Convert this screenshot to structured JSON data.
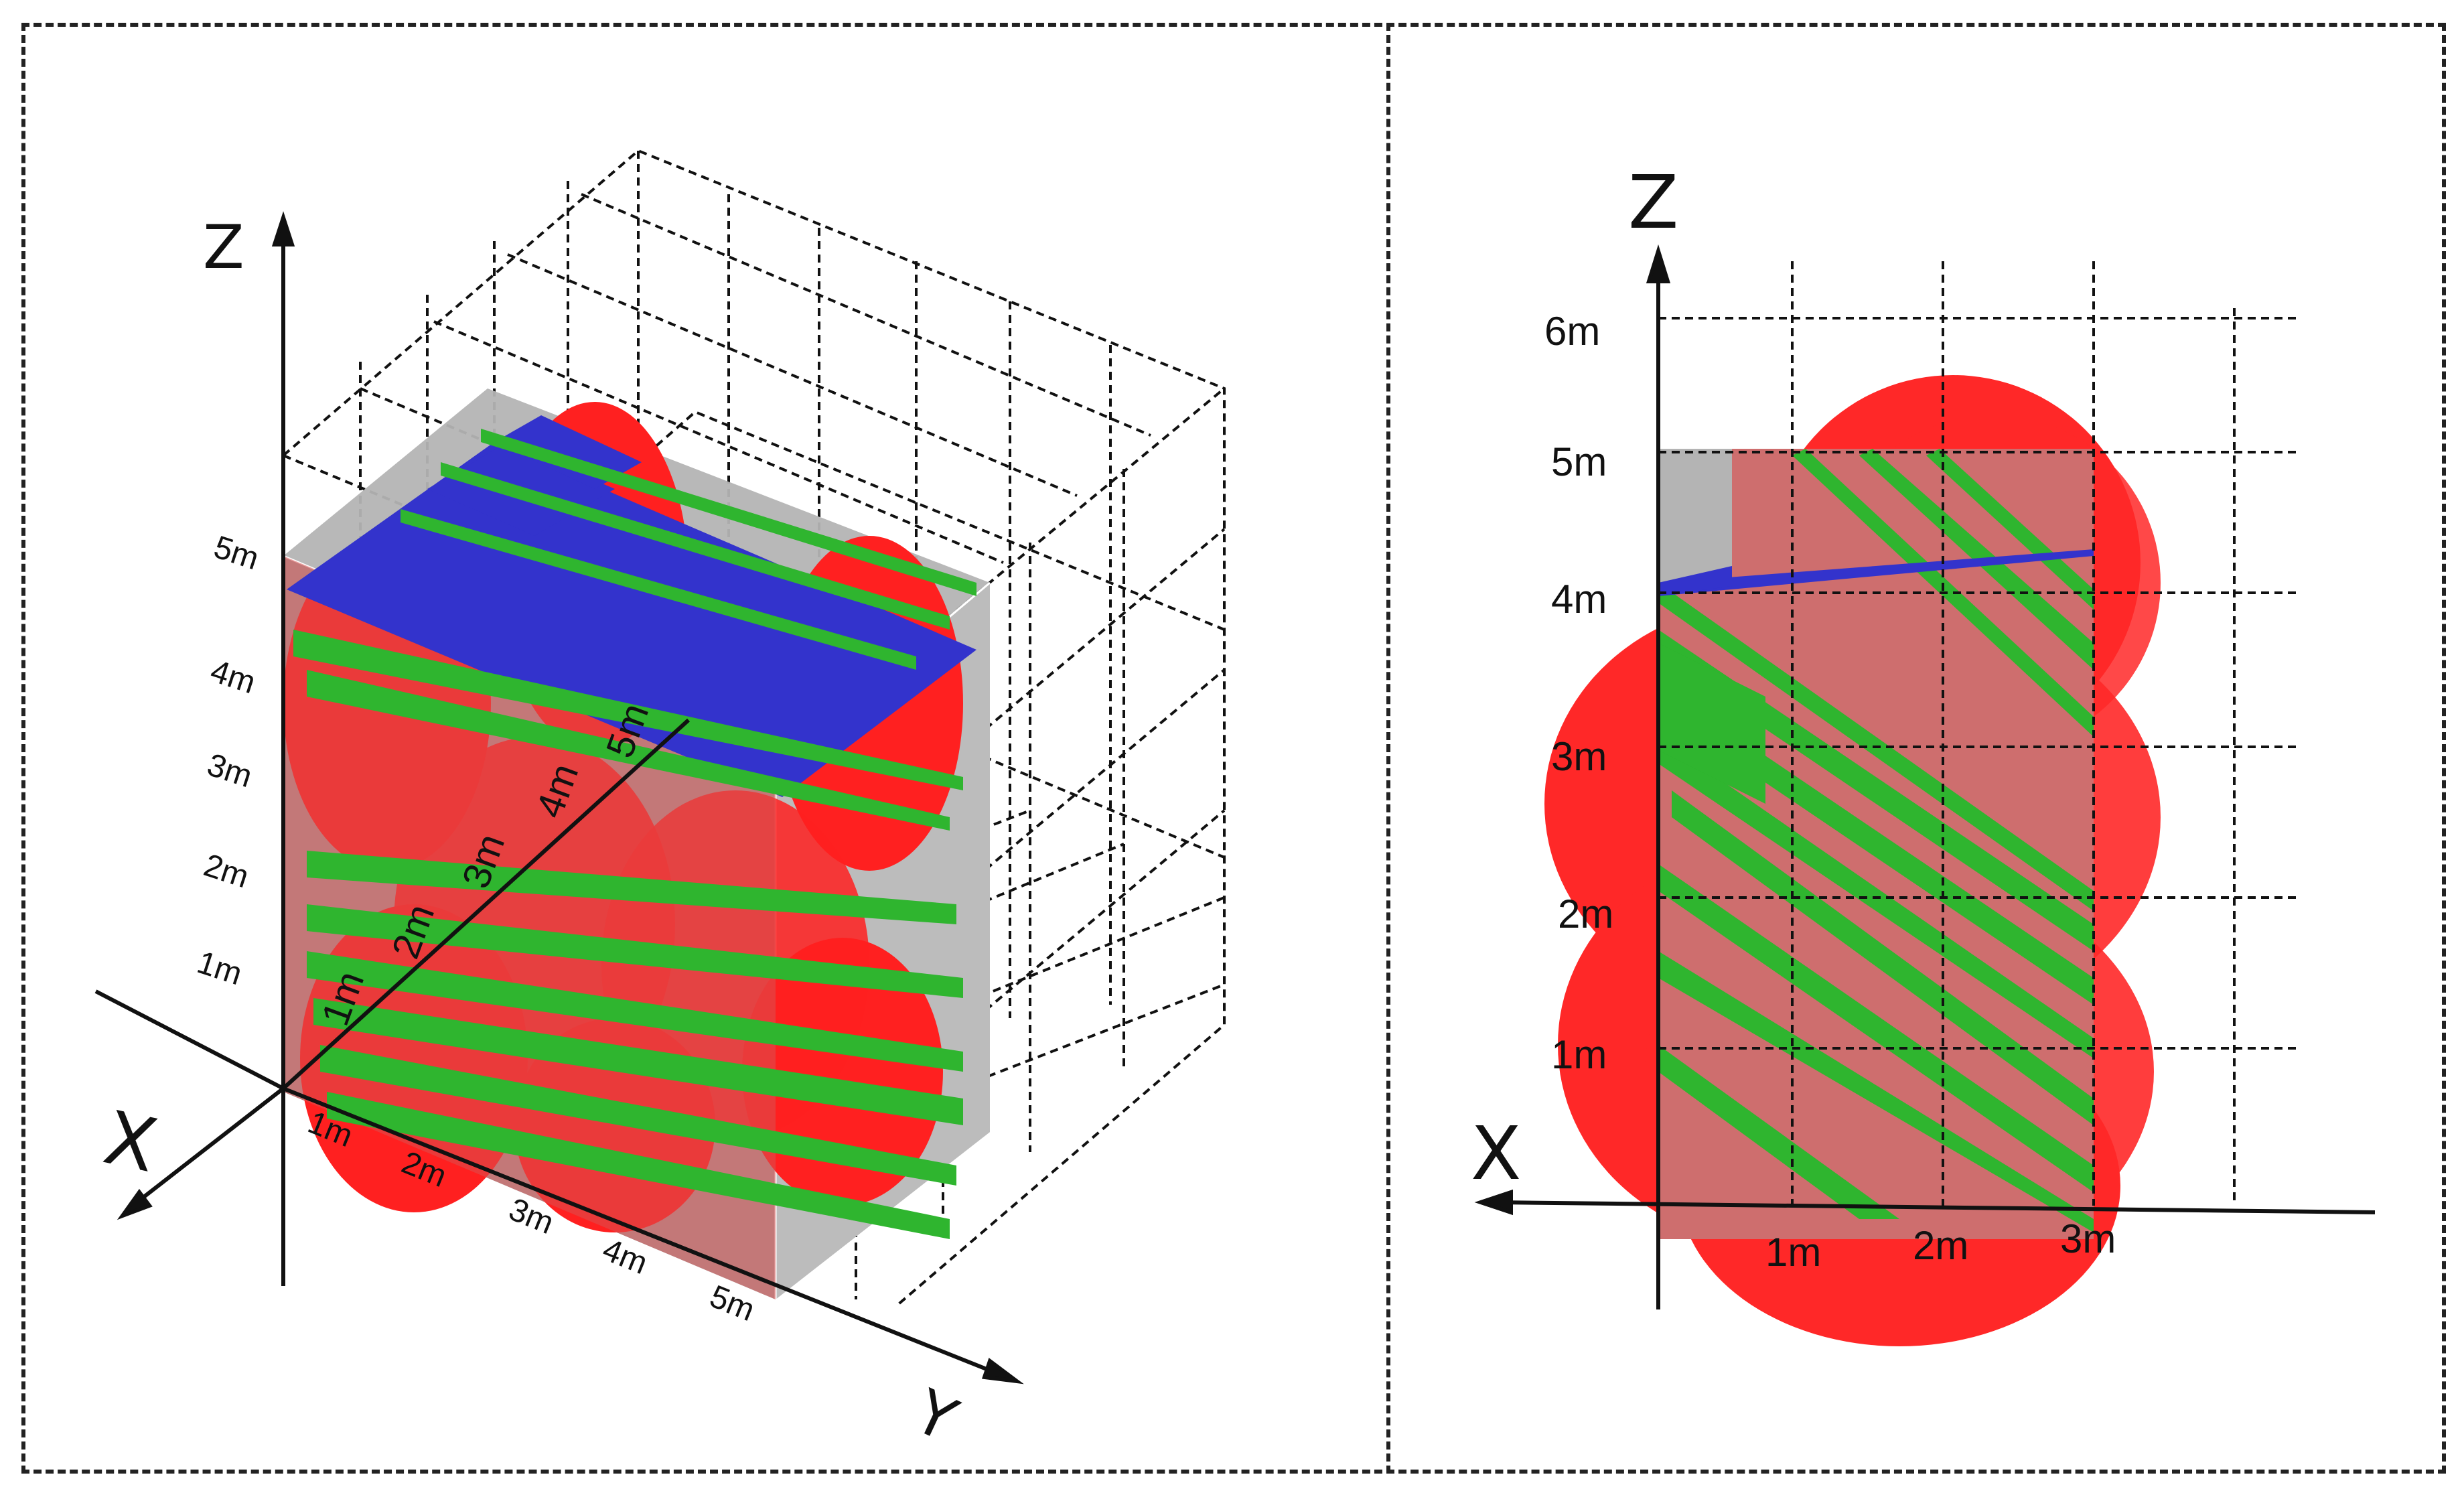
{
  "left_panel": {
    "axes": {
      "x": "X",
      "y": "Y",
      "z": "Z"
    },
    "z_ticks": [
      "1m",
      "2m",
      "3m",
      "4m",
      "5m"
    ],
    "y_ticks": [
      "1m",
      "2m",
      "3m",
      "4m",
      "5m"
    ],
    "x_ticks": [
      "1m",
      "2m",
      "3m",
      "4m",
      "5m"
    ]
  },
  "right_panel": {
    "axes": {
      "x": "X",
      "z": "Z"
    },
    "z_ticks": [
      "1m",
      "2m",
      "3m",
      "4m",
      "5m",
      "6m"
    ],
    "x_ticks": [
      "1m",
      "2m",
      "3m"
    ]
  },
  "colors": {
    "spheres": "#ff2020",
    "planes": "#2fb52f",
    "blue_plane": "#3333cc",
    "box": "#b4b4b4",
    "grid": "#111111"
  }
}
